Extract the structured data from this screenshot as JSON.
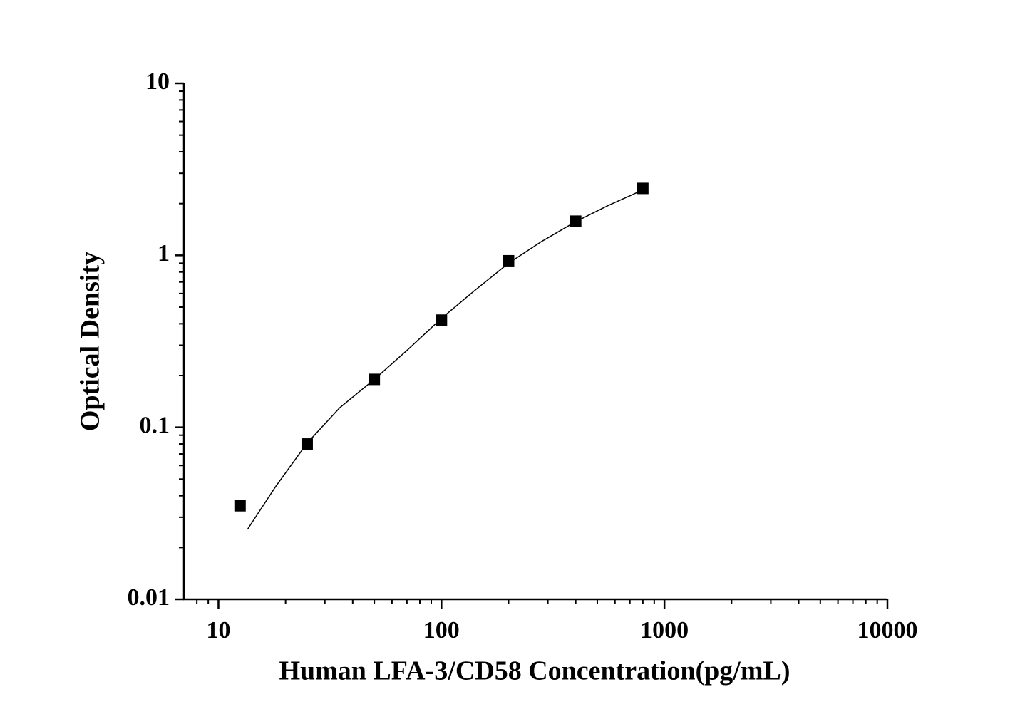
{
  "chart_data": {
    "type": "scatter",
    "x_label": "Human LFA-3/CD58 Concentration(pg/mL)",
    "y_label": "Optical Density",
    "xscale": "log",
    "yscale": "log",
    "xlim": [
      7,
      10000
    ],
    "ylim": [
      0.01,
      10
    ],
    "xticks": [
      10,
      100,
      1000,
      10000
    ],
    "yticks": [
      0.01,
      0.1,
      1,
      10
    ],
    "color": "#000000",
    "x": [
      12.5,
      25,
      50,
      100,
      200,
      400,
      800
    ],
    "values": [
      0.035,
      0.08,
      0.19,
      0.42,
      0.93,
      1.58,
      2.45
    ],
    "fit": {
      "x": [
        13.5,
        18,
        25,
        35,
        50,
        70,
        100,
        140,
        200,
        280,
        400,
        560,
        800
      ],
      "values": [
        0.0255,
        0.045,
        0.081,
        0.13,
        0.19,
        0.28,
        0.43,
        0.62,
        0.9,
        1.2,
        1.57,
        1.95,
        2.4
      ]
    }
  }
}
